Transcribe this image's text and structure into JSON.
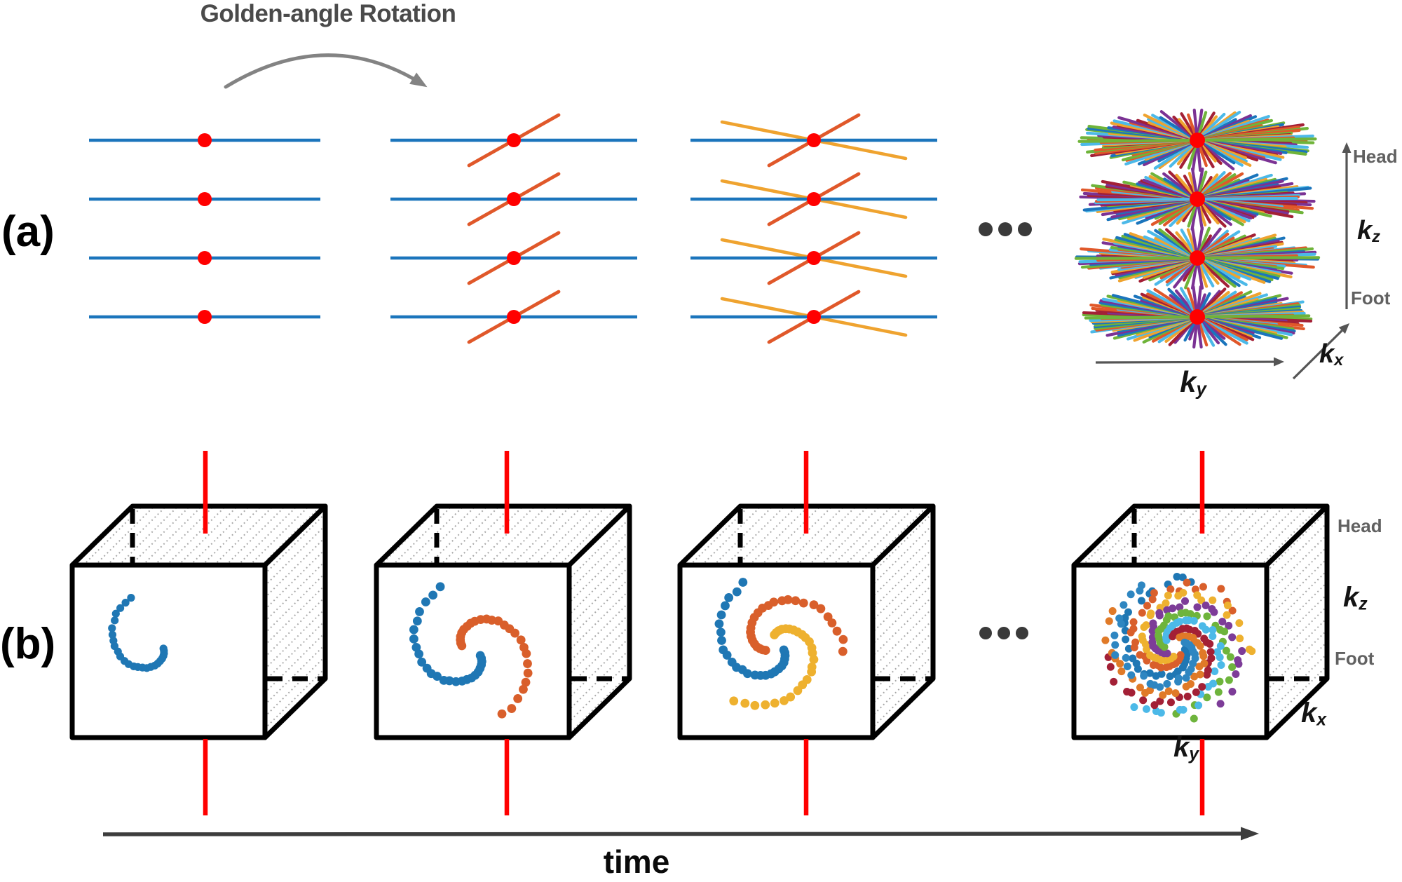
{
  "title": "Golden-angle Rotation",
  "panels": {
    "a": "(a)",
    "b": "(b)"
  },
  "labels": {
    "head": "Head",
    "foot": "Foot",
    "time": "time",
    "kz": {
      "base": "k",
      "sub": "z"
    },
    "ky": {
      "base": "k",
      "sub": "y"
    },
    "kx": {
      "base": "k",
      "sub": "x"
    }
  },
  "colors": {
    "spoke_blue": "#1b75bc",
    "spoke_orange": "#e0582a",
    "spoke_gold": "#efa32f",
    "marker_red": "#ff0000",
    "rotation_axis_red": "#ff0000",
    "title_gray": "#4a4a4a",
    "label_gray": "#616161",
    "curve_arrow_gray": "#838383",
    "axis_arrow_gray": "#555555",
    "time_arrow_dark": "#3d3d3d",
    "ellipsis_dark": "#3a3a3a",
    "cube_edge": "#000000",
    "hatch_gray": "#a3a3a3",
    "starburst_palette": [
      "#1b75bc",
      "#e0582a",
      "#efa32f",
      "#7b3294",
      "#6fb43a",
      "#4cb9e8",
      "#a32036"
    ],
    "spiral_palette": [
      "#1f77b4",
      "#d95f2b",
      "#eeb12f",
      "#7d3c98",
      "#6eb43c",
      "#4cb9e8",
      "#a32036",
      "#e07a28",
      "#2e86c1"
    ]
  },
  "panel_a_stages": {
    "rows_per_stage": 4,
    "spoke_counts": [
      1,
      2,
      3,
      "many"
    ]
  },
  "panel_b_stages": {
    "arm_counts": [
      1,
      2,
      3,
      "many"
    ]
  }
}
